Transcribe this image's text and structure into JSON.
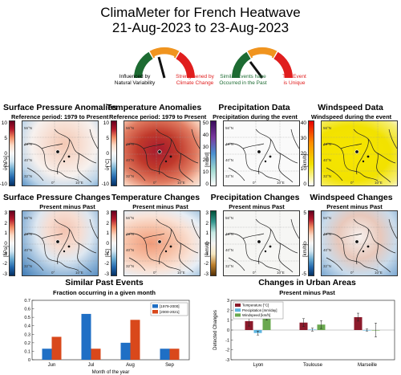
{
  "header": {
    "line1": "ClimaMeter for French Heatwave",
    "line2": "21-Aug-2023 to 23-Aug-2023"
  },
  "gauges": {
    "left": {
      "label_left": "Influenced by\nNatural Variability",
      "label_right": "Strengthened by\nClimate Change"
    },
    "right": {
      "label_left": "Similar Events have\nOccurred in the Past",
      "label_right": "The Event\nis Unique"
    }
  },
  "row1": [
    {
      "title": "Surface Pressure Anomalies",
      "subtitle": "Reference period: 1979 to Present",
      "unit": "[hPa]",
      "ticks": [
        "10",
        "5",
        "0",
        "-5",
        "-10"
      ]
    },
    {
      "title": "Temperature Anomalies",
      "subtitle": "Reference period: 1979 to Present",
      "unit": "[°C]",
      "ticks": [
        "10",
        "5",
        "0",
        "-5",
        "-10"
      ]
    },
    {
      "title": "Precipitation Data",
      "subtitle": "Precipitation during the event",
      "unit": "[mm/d]",
      "ticks": [
        "50",
        "40",
        "30",
        "20",
        "10",
        "0"
      ]
    },
    {
      "title": "Windspeed Data",
      "subtitle": "Windspeed during the event",
      "unit": "[km/h]",
      "ticks": [
        "40",
        "30",
        "20",
        "10",
        "0"
      ]
    }
  ],
  "row2": [
    {
      "title": "Surface Pressure Changes",
      "subtitle": "Present minus Past",
      "unit": "[hPa]",
      "ticks": [
        "3",
        "2",
        "1",
        "0",
        "-1",
        "-2",
        "-3"
      ]
    },
    {
      "title": "Temperature Changes",
      "subtitle": "Present minus Past",
      "unit": "[°C]",
      "ticks": [
        "3",
        "2",
        "1",
        "0",
        "-1",
        "-2",
        "-3"
      ]
    },
    {
      "title": "Precipitation Changes",
      "subtitle": "Present minus Past",
      "unit": "[mm/d]",
      "ticks": [
        "3",
        "2",
        "1",
        "0",
        "-1",
        "-2",
        "-3"
      ]
    },
    {
      "title": "Windspeed Changes",
      "subtitle": "Present minus Past",
      "unit": "[km/h]",
      "ticks": [
        "5",
        "0",
        "-5"
      ]
    }
  ],
  "map_labels": {
    "lat": [
      "56°N",
      "48°N",
      "40°N",
      "32°N"
    ],
    "lon": [
      "0°",
      "10°E"
    ]
  },
  "colors": {
    "pressure_pos": "#b2182b",
    "pressure_neg": "#2166ac",
    "temp_hot": "#c0392b",
    "wind_yellow": "#f2e200",
    "bar_past": "#1f6fc5",
    "bar_present": "#d9481b",
    "urban_temp": "#8b1a2b",
    "urban_precip": "#5fb6e0",
    "urban_wind": "#6aa84f"
  },
  "chart_data": [
    {
      "type": "bar",
      "title": "Similar Past Events",
      "subtitle": "Fraction occurring in a given month",
      "xlabel": "Month of the year",
      "ylabel": "",
      "categories": [
        "Jun",
        "Jul",
        "Aug",
        "Sep"
      ],
      "ylim": [
        0,
        0.7
      ],
      "yticks": [
        "0",
        "0.1",
        "0.2",
        "0.3",
        "0.4",
        "0.5",
        "0.6",
        "0.7"
      ],
      "series": [
        {
          "name": "[1979-2000]",
          "values": [
            0.13,
            0.54,
            0.2,
            0.13
          ]
        },
        {
          "name": "[2000-2021]",
          "values": [
            0.27,
            0.13,
            0.47,
            0.13
          ]
        }
      ],
      "legend": "top-right"
    },
    {
      "type": "bar",
      "title": "Changes in Urban Areas",
      "subtitle": "Present minus Past",
      "xlabel": "",
      "ylabel": "Detected Changes",
      "categories": [
        "Lyon",
        "Toulouse",
        "Marseille"
      ],
      "ylim": [
        -3,
        3
      ],
      "yticks": [
        "3",
        "2",
        "1",
        "0",
        "-1",
        "-2",
        "-3"
      ],
      "series": [
        {
          "name": "Temperature [°C]",
          "values": [
            0.9,
            0.75,
            1.3
          ],
          "errors": [
            0.5,
            0.4,
            0.4
          ]
        },
        {
          "name": "Precipitation [mm/day]",
          "values": [
            -0.3,
            0.05,
            0.0
          ],
          "errors": [
            0.2,
            0.15,
            0.1
          ]
        },
        {
          "name": "Windspeed [km/h]",
          "values": [
            1.7,
            0.55,
            0.0
          ],
          "errors": [
            0.7,
            0.4,
            0.7
          ]
        }
      ],
      "legend": "top-left"
    }
  ]
}
